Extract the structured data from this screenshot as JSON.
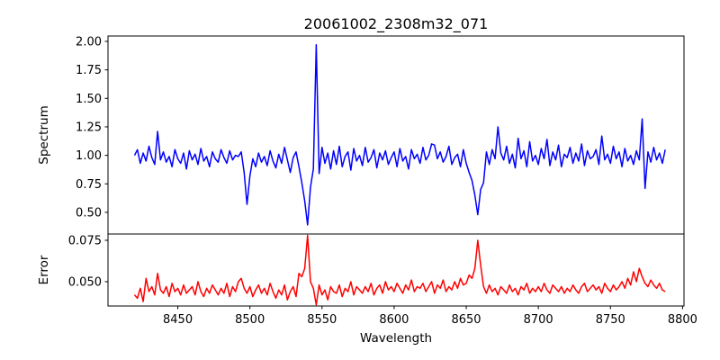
{
  "chart_data": [
    {
      "type": "line",
      "title": "20061002_2308m32_071",
      "ylabel": "Spectrum",
      "xlabel": "",
      "xlim": [
        8401.6,
        8801
      ],
      "ylim": [
        0.31,
        2.047
      ],
      "yticks": [
        "0.50",
        "0.75",
        "1.00",
        "1.25",
        "1.50",
        "1.75",
        "2.00"
      ],
      "color": "#0000ff",
      "x_start": 8420,
      "x_step": 2,
      "values": [
        1.0,
        1.05,
        0.93,
        1.02,
        0.95,
        1.08,
        0.98,
        0.92,
        1.21,
        0.96,
        1.03,
        0.94,
        0.99,
        0.9,
        1.05,
        0.97,
        0.93,
        1.02,
        0.88,
        1.04,
        0.96,
        1.01,
        0.92,
        1.06,
        0.95,
        0.99,
        0.9,
        1.03,
        0.97,
        0.94,
        1.05,
        0.98,
        0.93,
        1.04,
        0.96,
        1.0,
        0.99,
        1.03,
        0.85,
        0.57,
        0.82,
        0.97,
        0.9,
        1.02,
        0.94,
        0.99,
        0.91,
        1.04,
        0.95,
        0.89,
        1.01,
        0.93,
        1.07,
        0.96,
        0.85,
        0.98,
        1.03,
        0.9,
        0.76,
        0.6,
        0.39,
        0.72,
        0.88,
        1.97,
        0.84,
        1.07,
        0.93,
        1.02,
        0.88,
        1.04,
        0.92,
        1.08,
        0.9,
        0.99,
        1.03,
        0.87,
        1.06,
        0.95,
        1.0,
        0.91,
        1.07,
        0.94,
        0.98,
        1.05,
        0.89,
        1.02,
        0.96,
        1.04,
        0.92,
        0.98,
        1.03,
        0.9,
        1.06,
        0.95,
        0.99,
        0.88,
        1.05,
        0.97,
        1.01,
        0.93,
        1.07,
        0.96,
        1.0,
        1.1,
        1.09,
        0.97,
        1.03,
        0.94,
        0.99,
        1.08,
        0.92,
        0.98,
        1.01,
        0.9,
        1.05,
        0.93,
        0.85,
        0.78,
        0.65,
        0.48,
        0.7,
        0.76,
        1.03,
        0.92,
        1.05,
        0.97,
        1.25,
        1.02,
        0.96,
        1.08,
        0.93,
        1.01,
        0.89,
        1.15,
        0.97,
        1.04,
        0.9,
        1.12,
        0.95,
        1.0,
        0.92,
        1.06,
        0.97,
        1.14,
        0.91,
        1.03,
        0.96,
        1.09,
        0.9,
        1.01,
        0.98,
        1.07,
        0.93,
        1.02,
        0.95,
        1.1,
        0.91,
        1.04,
        0.97,
        0.99,
        1.05,
        0.92,
        1.17,
        0.96,
        1.01,
        0.93,
        1.08,
        0.97,
        1.03,
        0.9,
        1.06,
        0.95,
        1.0,
        0.92,
        1.04,
        0.96,
        1.32,
        0.71,
        1.03,
        0.94,
        1.07,
        0.96,
        1.02,
        0.93,
        1.05
      ]
    },
    {
      "type": "line",
      "ylabel": "Error",
      "xlabel": "Wavelength",
      "xlim": [
        8401.6,
        8801
      ],
      "ylim": [
        0.0353,
        0.0788
      ],
      "yticks": [
        "0.050",
        "0.075"
      ],
      "xticks": [
        "8450",
        "8500",
        "8550",
        "8600",
        "8650",
        "8700",
        "8750",
        "8800"
      ],
      "color": "#ff0000",
      "x_start": 8420,
      "x_step": 2,
      "values": [
        0.042,
        0.04,
        0.046,
        0.038,
        0.052,
        0.044,
        0.047,
        0.042,
        0.055,
        0.045,
        0.043,
        0.047,
        0.041,
        0.049,
        0.044,
        0.046,
        0.042,
        0.048,
        0.043,
        0.045,
        0.047,
        0.042,
        0.05,
        0.044,
        0.041,
        0.046,
        0.043,
        0.048,
        0.045,
        0.042,
        0.046,
        0.043,
        0.049,
        0.041,
        0.047,
        0.044,
        0.05,
        0.052,
        0.046,
        0.043,
        0.047,
        0.041,
        0.045,
        0.048,
        0.043,
        0.046,
        0.042,
        0.049,
        0.044,
        0.04,
        0.045,
        0.042,
        0.048,
        0.039,
        0.044,
        0.047,
        0.041,
        0.055,
        0.053,
        0.058,
        0.078,
        0.05,
        0.046,
        0.036,
        0.048,
        0.042,
        0.045,
        0.039,
        0.047,
        0.044,
        0.043,
        0.048,
        0.041,
        0.046,
        0.044,
        0.05,
        0.042,
        0.047,
        0.045,
        0.043,
        0.047,
        0.044,
        0.049,
        0.042,
        0.046,
        0.048,
        0.043,
        0.05,
        0.045,
        0.047,
        0.044,
        0.049,
        0.046,
        0.043,
        0.048,
        0.045,
        0.051,
        0.044,
        0.047,
        0.046,
        0.049,
        0.044,
        0.047,
        0.05,
        0.043,
        0.048,
        0.046,
        0.051,
        0.044,
        0.047,
        0.045,
        0.05,
        0.046,
        0.052,
        0.048,
        0.049,
        0.054,
        0.052,
        0.058,
        0.075,
        0.06,
        0.047,
        0.043,
        0.048,
        0.044,
        0.046,
        0.042,
        0.047,
        0.045,
        0.043,
        0.048,
        0.044,
        0.046,
        0.042,
        0.047,
        0.045,
        0.049,
        0.043,
        0.046,
        0.044,
        0.047,
        0.044,
        0.049,
        0.045,
        0.043,
        0.048,
        0.046,
        0.044,
        0.047,
        0.043,
        0.046,
        0.044,
        0.048,
        0.045,
        0.043,
        0.047,
        0.049,
        0.044,
        0.046,
        0.048,
        0.045,
        0.047,
        0.043,
        0.049,
        0.046,
        0.044,
        0.048,
        0.045,
        0.047,
        0.05,
        0.046,
        0.052,
        0.048,
        0.056,
        0.05,
        0.058,
        0.053,
        0.049,
        0.047,
        0.051,
        0.048,
        0.046,
        0.049,
        0.045,
        0.044
      ]
    }
  ]
}
